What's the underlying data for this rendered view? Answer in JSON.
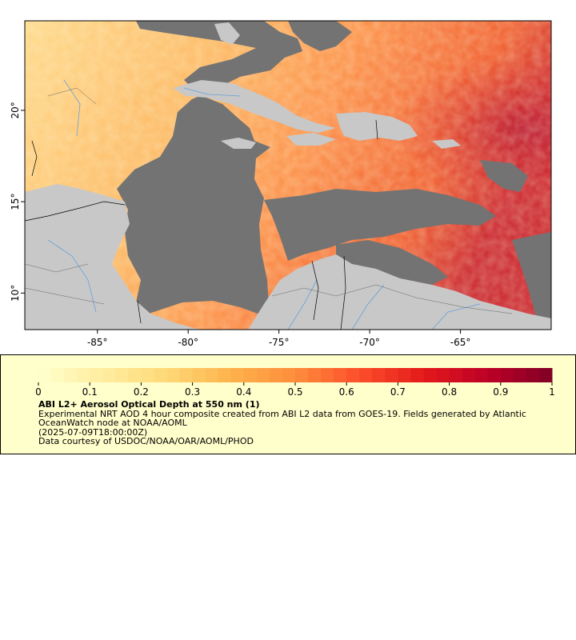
{
  "map": {
    "lon_range": [
      -89,
      -60
    ],
    "lat_range": [
      8,
      24.9
    ],
    "x_ticks": [
      {
        "value": -85,
        "label": "-85°"
      },
      {
        "value": -80,
        "label": "-80°"
      },
      {
        "value": -75,
        "label": "-75°"
      },
      {
        "value": -70,
        "label": "-70°"
      },
      {
        "value": -65,
        "label": "-65°"
      }
    ],
    "y_ticks": [
      {
        "value": 20,
        "label": "20°"
      },
      {
        "value": 15,
        "label": "15°"
      },
      {
        "value": 10,
        "label": "10°"
      }
    ],
    "colors": {
      "no_data_ocean": "#737373",
      "land": "#c8c8c8",
      "rivers": "#6aa0d8",
      "borders": "#000000"
    }
  },
  "colorbar": {
    "min": 0,
    "max": 1,
    "levels": 40,
    "ticks": [
      "0",
      "0.1",
      "0.2",
      "0.3",
      "0.4",
      "0.5",
      "0.6",
      "0.7",
      "0.8",
      "0.9",
      "1"
    ],
    "stops": [
      "#ffffcc",
      "#ffeda0",
      "#fed976",
      "#feb24c",
      "#fd8d3c",
      "#fc4e2a",
      "#e31a1c",
      "#bd0026",
      "#800026"
    ]
  },
  "legend": {
    "title": "ABI L2+ Aerosol Optical Depth at 550 nm (1)",
    "line1": "Experimental NRT AOD 4 hour composite created from ABI L2 data from GOES-19. Fields generated by Atlantic OceanWatch node at NOAA/AOML",
    "line2": "(2025-07-09T18:00:00Z)",
    "line3": "Data courtesy of USDOC/NOAA/OAR/AOML/PHOD"
  }
}
